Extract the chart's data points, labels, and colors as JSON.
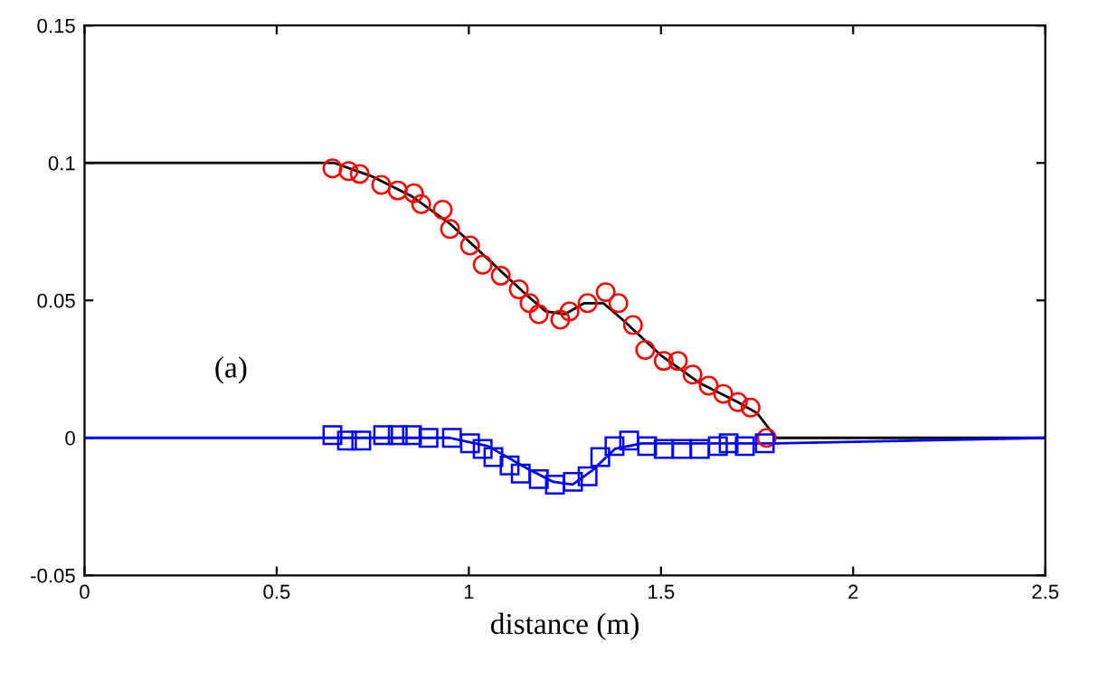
{
  "chart_data": {
    "type": "scatter",
    "xlabel": "distance (m)",
    "annotations": [
      "(a)"
    ],
    "xlim": [
      0,
      2.5
    ],
    "ylim": [
      -0.05,
      0.15
    ],
    "xticks": [
      0,
      0.5,
      1,
      1.5,
      2,
      2.5
    ],
    "yticks": [
      -0.05,
      0,
      0.05,
      0.1,
      0.15
    ],
    "grid": false,
    "series": [
      {
        "type": "line",
        "color": "#000000",
        "marker": "none",
        "x": [
          0,
          0.65,
          0.75,
          0.85,
          0.95,
          1.05,
          1.15,
          1.2,
          1.25,
          1.3,
          1.35,
          1.4,
          1.5,
          1.6,
          1.7,
          1.75,
          1.8,
          2.5
        ],
        "values": [
          0.1,
          0.1,
          0.095,
          0.088,
          0.078,
          0.065,
          0.052,
          0.046,
          0.045,
          0.049,
          0.049,
          0.043,
          0.03,
          0.02,
          0.013,
          0.009,
          0,
          0
        ]
      },
      {
        "type": "line",
        "color": "#0000ff",
        "marker": "none",
        "x": [
          0,
          0.65,
          0.95,
          1.05,
          1.15,
          1.22,
          1.27,
          1.32,
          1.38,
          1.45,
          1.8,
          2.5
        ],
        "values": [
          0,
          0,
          0,
          -0.003,
          -0.011,
          -0.016,
          -0.017,
          -0.012,
          -0.004,
          -0.002,
          -0.002,
          0
        ]
      },
      {
        "color": "#ff0000",
        "marker": "circle",
        "x": [
          0.645,
          0.687,
          0.716,
          0.772,
          0.815,
          0.857,
          0.876,
          0.932,
          0.951,
          1.003,
          1.036,
          1.083,
          1.13,
          1.158,
          1.182,
          1.238,
          1.262,
          1.309,
          1.356,
          1.389,
          1.427,
          1.459,
          1.507,
          1.544,
          1.582,
          1.624,
          1.662,
          1.7,
          1.733,
          1.775
        ],
        "values": [
          0.098,
          0.097,
          0.096,
          0.092,
          0.09,
          0.089,
          0.085,
          0.083,
          0.076,
          0.07,
          0.063,
          0.059,
          0.054,
          0.049,
          0.045,
          0.043,
          0.046,
          0.049,
          0.053,
          0.049,
          0.041,
          0.032,
          0.028,
          0.028,
          0.023,
          0.019,
          0.016,
          0.013,
          0.011,
          0
        ]
      },
      {
        "color": "#0000ff",
        "marker": "square",
        "x": [
          0.645,
          0.683,
          0.72,
          0.777,
          0.815,
          0.852,
          0.895,
          0.956,
          1.003,
          1.036,
          1.064,
          1.106,
          1.135,
          1.182,
          1.224,
          1.271,
          1.309,
          1.342,
          1.379,
          1.417,
          1.464,
          1.507,
          1.554,
          1.601,
          1.648,
          1.676,
          1.718,
          1.77
        ],
        "values": [
          0.001,
          -0.001,
          -0.001,
          0.001,
          0.001,
          0.001,
          0,
          0,
          -0.002,
          -0.004,
          -0.007,
          -0.01,
          -0.013,
          -0.015,
          -0.017,
          -0.016,
          -0.014,
          -0.007,
          -0.003,
          -0.001,
          -0.003,
          -0.004,
          -0.004,
          -0.004,
          -0.003,
          -0.002,
          -0.003,
          -0.002
        ]
      }
    ]
  }
}
